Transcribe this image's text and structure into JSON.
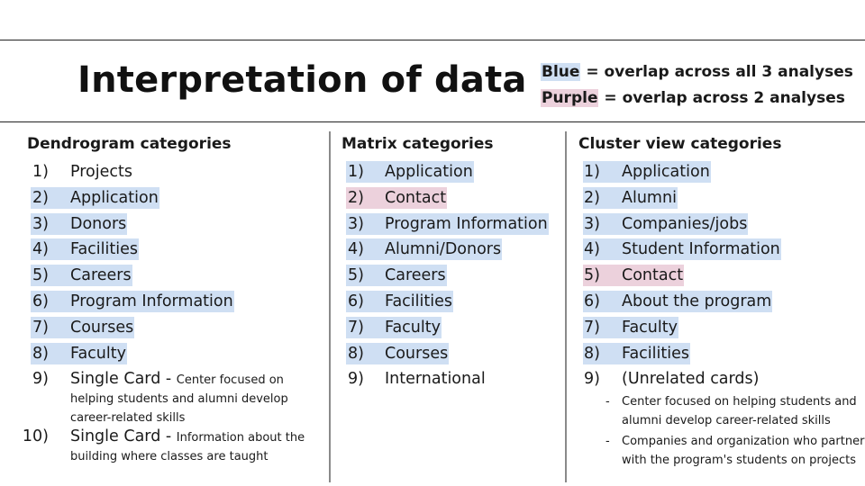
{
  "title": "Interpretation of data",
  "legend": {
    "blue_term": "Blue",
    "blue_text": " = overlap across all 3 analyses",
    "purple_term": "Purple",
    "purple_text": " = overlap across 2 analyses",
    "colors": {
      "blue": "#cfdff3",
      "purple": "#ecd1dc"
    }
  },
  "columns": [
    {
      "heading": "Dendrogram categories",
      "items": [
        {
          "num": "1)",
          "label": "Projects",
          "highlight": "none"
        },
        {
          "num": "2)",
          "label": "Application",
          "highlight": "blue"
        },
        {
          "num": "3)",
          "label": "Donors",
          "highlight": "blue"
        },
        {
          "num": "4)",
          "label": "Facilities",
          "highlight": "blue"
        },
        {
          "num": "5)",
          "label": "Careers",
          "highlight": "blue"
        },
        {
          "num": "6)",
          "label": "Program Information",
          "highlight": "blue"
        },
        {
          "num": "7)",
          "label": "Courses",
          "highlight": "blue"
        },
        {
          "num": "8)",
          "label": "Faculty",
          "highlight": "blue"
        },
        {
          "num": "9)",
          "label": "Single Card - ",
          "small": "Center focused on",
          "highlight": "none",
          "desc": [
            "helping students and alumni develop",
            "career-related skills"
          ]
        },
        {
          "num": "10)",
          "label": "Single Card - ",
          "small": "Information about the",
          "highlight": "none",
          "desc": [
            "building where classes are taught"
          ]
        }
      ]
    },
    {
      "heading": "Matrix categories",
      "items": [
        {
          "num": "1)",
          "label": "Application",
          "highlight": "blue"
        },
        {
          "num": "2)",
          "label": "Contact",
          "highlight": "purple"
        },
        {
          "num": "3)",
          "label": "Program Information",
          "highlight": "blue"
        },
        {
          "num": "4)",
          "label": "Alumni/Donors",
          "highlight": "blue"
        },
        {
          "num": "5)",
          "label": "Careers",
          "highlight": "blue"
        },
        {
          "num": "6)",
          "label": "Facilities",
          "highlight": "blue"
        },
        {
          "num": "7)",
          "label": "Faculty",
          "highlight": "blue"
        },
        {
          "num": "8)",
          "label": "Courses",
          "highlight": "blue"
        },
        {
          "num": "9)",
          "label": "International",
          "highlight": "none"
        }
      ]
    },
    {
      "heading": "Cluster view categories",
      "items": [
        {
          "num": "1)",
          "label": "Application",
          "highlight": "blue"
        },
        {
          "num": "2)",
          "label": "Alumni",
          "highlight": "blue"
        },
        {
          "num": "3)",
          "label": "Companies/jobs",
          "highlight": "blue"
        },
        {
          "num": "4)",
          "label": "Student Information",
          "highlight": "blue"
        },
        {
          "num": "5)",
          "label": "Contact",
          "highlight": "purple"
        },
        {
          "num": "6)",
          "label": "About the program",
          "highlight": "blue"
        },
        {
          "num": "7)",
          "label": "Faculty",
          "highlight": "blue"
        },
        {
          "num": "8)",
          "label": "Facilities",
          "highlight": "blue"
        },
        {
          "num": "9)",
          "label": "(Unrelated cards)",
          "highlight": "none"
        }
      ],
      "subitems": [
        {
          "dash": "-",
          "lines": [
            "Center focused on helping students and",
            "alumni develop career-related skills"
          ]
        },
        {
          "dash": "-",
          "lines": [
            "Companies and organization who partner",
            "with the program's students on projects"
          ]
        }
      ]
    }
  ]
}
